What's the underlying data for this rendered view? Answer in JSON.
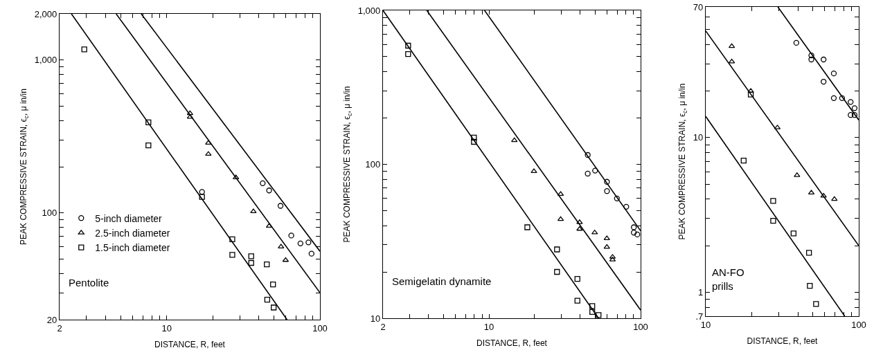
{
  "chart_data": [
    {
      "type": "scatter",
      "xlabel": "DISTANCE, R, feet",
      "ylabel": "PEAK COMPRESSIVE STRAIN, ϵ$_{c}$, μ in/in",
      "log": "xy",
      "legend": "bottom left",
      "annotations": [
        "Pentolite"
      ],
      "xlim": [
        2,
        100
      ],
      "ylim": [
        20,
        2000
      ],
      "xticks": [
        2,
        {
          "value": 3,
          "label": null
        },
        {
          "value": 4,
          "label": null
        },
        {
          "value": 5,
          "label": null
        },
        {
          "value": 6,
          "label": null
        },
        {
          "value": 7,
          "label": null
        },
        {
          "value": 8,
          "label": null
        },
        {
          "value": 9,
          "label": null
        },
        10,
        {
          "value": 20,
          "label": null
        },
        {
          "value": 30,
          "label": null
        },
        {
          "value": 40,
          "label": null
        },
        {
          "value": 50,
          "label": null
        },
        {
          "value": 60,
          "label": null
        },
        {
          "value": 70,
          "label": null
        },
        {
          "value": 80,
          "label": null
        },
        {
          "value": 90,
          "label": null
        },
        100
      ],
      "yticks": [
        20,
        {
          "value": 30,
          "label": null
        },
        {
          "value": 40,
          "label": null
        },
        {
          "value": 50,
          "label": null
        },
        {
          "value": 60,
          "label": null
        },
        {
          "value": 70,
          "label": null
        },
        {
          "value": 80,
          "label": null
        },
        {
          "value": 90,
          "label": null
        },
        100,
        {
          "value": 200,
          "label": null
        },
        {
          "value": 300,
          "label": null
        },
        {
          "value": 400,
          "label": null
        },
        {
          "value": 500,
          "label": null
        },
        {
          "value": 600,
          "label": null
        },
        {
          "value": 700,
          "label": null
        },
        {
          "value": 800,
          "label": null
        },
        {
          "value": 900,
          "label": null
        },
        {
          "value": 1000,
          "label": "1,000"
        },
        {
          "value": 2000,
          "label": "2,000"
        }
      ],
      "series": [
        {
          "name": "5-inch diameter",
          "marker": "circle",
          "color": "#000000",
          "x": [
            17.0,
            42.3,
            46.6,
            55.3,
            65.0,
            74.6,
            84.1,
            88.1
          ],
          "values": [
            137,
            156,
            140,
            111,
            71,
            63,
            64,
            54
          ]
        },
        {
          "name": "2.5-inch diameter",
          "marker": "triangle",
          "color": "#000000",
          "x": [
            14.2,
            14.2,
            18.7,
            18.7,
            28.3,
            36.8,
            46.6,
            55.7,
            59.7
          ],
          "values": [
            447,
            423,
            286,
            242,
            170,
            102,
            82,
            60,
            49
          ]
        },
        {
          "name": "1.5-inch diameter",
          "marker": "square",
          "color": "#000000",
          "x": [
            2.9,
            7.6,
            7.6,
            17.0,
            26.8,
            26.8,
            35.6,
            35.6,
            45.0,
            49.4,
            45.3,
            49.9
          ],
          "values": [
            1170,
            390,
            276,
            127,
            67,
            53,
            52,
            47,
            46,
            34,
            27,
            24
          ]
        },
        {
          "type": "line",
          "color": "#000000",
          "x": [
            6.82,
            100
          ],
          "values": [
            2000,
            56
          ]
        },
        {
          "type": "line",
          "color": "#000000",
          "x": [
            4.68,
            100
          ],
          "values": [
            2000,
            30
          ]
        },
        {
          "type": "line",
          "color": "#000000",
          "x": [
            2.39,
            61
          ],
          "values": [
            2000,
            20
          ]
        }
      ]
    },
    {
      "type": "scatter",
      "xlabel": "DISTANCE, R, feet",
      "ylabel": "PEAK COMPRESSIVE STRAIN, ϵ$_{c}$, μ in/in",
      "log": "xy",
      "annotations": [
        "Semigelatin dynamite"
      ],
      "xlim": [
        2,
        100
      ],
      "ylim": [
        10,
        1000
      ],
      "xticks": [
        2,
        {
          "value": 3,
          "label": null
        },
        {
          "value": 4,
          "label": null
        },
        {
          "value": 5,
          "label": null
        },
        {
          "value": 6,
          "label": null
        },
        {
          "value": 7,
          "label": null
        },
        {
          "value": 8,
          "label": null
        },
        {
          "value": 9,
          "label": null
        },
        10,
        {
          "value": 20,
          "label": null
        },
        {
          "value": 30,
          "label": null
        },
        {
          "value": 40,
          "label": null
        },
        {
          "value": 50,
          "label": null
        },
        {
          "value": 60,
          "label": null
        },
        {
          "value": 70,
          "label": null
        },
        {
          "value": 80,
          "label": null
        },
        {
          "value": 90,
          "label": null
        },
        100
      ],
      "yticks": [
        10,
        {
          "value": 20,
          "label": null
        },
        {
          "value": 30,
          "label": null
        },
        {
          "value": 40,
          "label": null
        },
        {
          "value": 50,
          "label": null
        },
        {
          "value": 60,
          "label": null
        },
        {
          "value": 70,
          "label": null
        },
        {
          "value": 80,
          "label": null
        },
        {
          "value": 90,
          "label": null
        },
        100,
        {
          "value": 200,
          "label": null
        },
        {
          "value": 300,
          "label": null
        },
        {
          "value": 400,
          "label": null
        },
        {
          "value": 500,
          "label": null
        },
        {
          "value": 600,
          "label": null
        },
        {
          "value": 700,
          "label": null
        },
        {
          "value": 800,
          "label": null
        },
        {
          "value": 900,
          "label": null
        },
        {
          "value": 1000,
          "label": "1,000"
        }
      ],
      "series": [
        {
          "marker": "circle",
          "color": "#000000",
          "x": [
            44.8,
            44.8,
            50.1,
            60.0,
            60.0,
            69.8,
            80.4,
            90.2,
            90.2,
            95.1
          ],
          "values": [
            115,
            87,
            91,
            77,
            67,
            60,
            53,
            39,
            36,
            35
          ]
        },
        {
          "marker": "triangle",
          "color": "#000000",
          "x": [
            14.7,
            19.8,
            29.7,
            29.7,
            39.6,
            39.6,
            49.8,
            59.9,
            59.9,
            65.3,
            65.3
          ],
          "values": [
            143,
            90,
            64,
            44,
            42,
            38,
            36,
            33,
            29,
            25,
            24
          ]
        },
        {
          "marker": "square",
          "color": "#000000",
          "x": [
            2.93,
            2.93,
            7.96,
            7.96,
            17.9,
            28.1,
            28.1,
            38.3,
            38.3,
            48.0,
            48.0,
            52.8
          ],
          "values": [
            590,
            520,
            149,
            140,
            39,
            28,
            20,
            18,
            13,
            12,
            11,
            10.5
          ]
        },
        {
          "type": "line",
          "color": "#000000",
          "x": [
            9.35,
            100
          ],
          "values": [
            1000,
            37
          ]
        },
        {
          "type": "line",
          "color": "#000000",
          "x": [
            3.89,
            100
          ],
          "values": [
            1000,
            11.3
          ]
        },
        {
          "type": "line",
          "color": "#000000",
          "x": [
            2,
            52.8
          ],
          "values": [
            1000,
            10
          ]
        }
      ]
    },
    {
      "type": "scatter",
      "xlabel": "DISTANCE, R, feet",
      "ylabel": "PEAK COMPRESSIVE STRAIN, ϵ$_{c}$, μ in/in",
      "log": "xy",
      "annotations": [
        "AN-FO\nprills"
      ],
      "xlim": [
        10,
        100
      ],
      "ylim": [
        0.7,
        70
      ],
      "xticks": [
        10,
        {
          "value": 20,
          "label": null
        },
        {
          "value": 30,
          "label": null
        },
        {
          "value": 40,
          "label": null
        },
        {
          "value": 50,
          "label": null
        },
        {
          "value": 60,
          "label": null
        },
        {
          "value": 70,
          "label": null
        },
        {
          "value": 80,
          "label": null
        },
        {
          "value": 90,
          "label": null
        },
        100
      ],
      "yticks": [
        {
          "value": 0.7,
          "label": ".7"
        },
        {
          "value": 0.8,
          "label": null
        },
        {
          "value": 0.9,
          "label": null
        },
        1,
        {
          "value": 2,
          "label": null
        },
        {
          "value": 3,
          "label": null
        },
        {
          "value": 4,
          "label": null
        },
        {
          "value": 5,
          "label": null
        },
        {
          "value": 6,
          "label": null
        },
        {
          "value": 7,
          "label": null
        },
        {
          "value": 8,
          "label": null
        },
        {
          "value": 9,
          "label": null
        },
        10,
        {
          "value": 20,
          "label": null
        },
        {
          "value": 30,
          "label": null
        },
        {
          "value": 40,
          "label": null
        },
        {
          "value": 50,
          "label": null
        },
        {
          "value": 60,
          "label": null
        },
        70
      ],
      "series": [
        {
          "marker": "circle",
          "color": "#000000",
          "x": [
            39.1,
            49.0,
            49.0,
            58.9,
            58.9,
            68.7,
            68.7,
            77.8,
            88.5,
            88.5,
            93.9,
            93.9
          ],
          "values": [
            41,
            34,
            32,
            32,
            23,
            26,
            18,
            18,
            17,
            14,
            15.5,
            14
          ]
        },
        {
          "marker": "triangle",
          "color": "#000000",
          "x": [
            14.8,
            14.8,
            19.7,
            29.4,
            39.5,
            49.0,
            58.9,
            69.3
          ],
          "values": [
            39,
            31,
            20,
            11.6,
            5.7,
            4.4,
            4.2,
            4.0
          ]
        },
        {
          "marker": "square",
          "color": "#000000",
          "x": [
            17.7,
            19.7,
            27.6,
            27.6,
            37.5,
            47.3,
            47.9,
            52.6
          ],
          "values": [
            7.1,
            19,
            3.9,
            2.9,
            2.4,
            1.8,
            1.1,
            0.84
          ]
        },
        {
          "type": "line",
          "color": "#000000",
          "x": [
            29.6,
            100
          ],
          "values": [
            70,
            13
          ]
        },
        {
          "type": "line",
          "color": "#000000",
          "x": [
            10,
            100
          ],
          "values": [
            49,
            2.0
          ]
        },
        {
          "type": "line",
          "color": "#000000",
          "x": [
            10,
            81
          ],
          "values": [
            13.7,
            0.7
          ]
        }
      ]
    }
  ]
}
